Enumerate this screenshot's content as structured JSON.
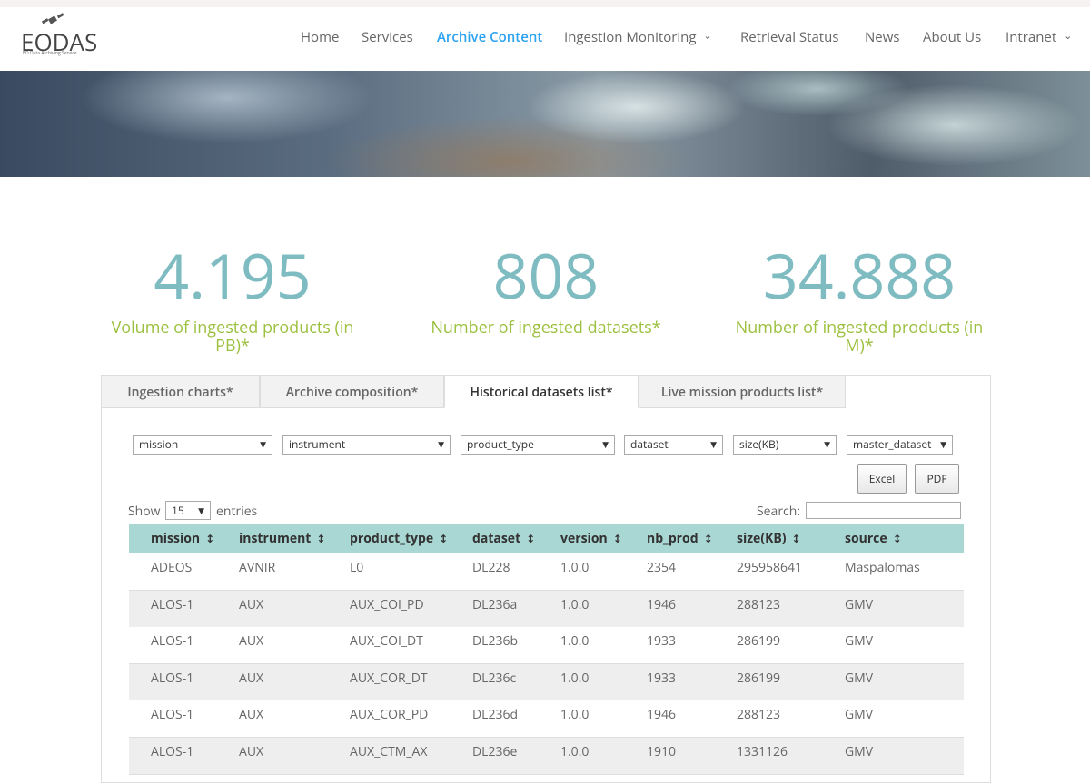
{
  "header": {
    "logo": "EODAS",
    "logo_sub": "EO Data Archiving Service",
    "nav": [
      "Home",
      "Services",
      "Archive Content",
      "Ingestion Monitoring",
      "Retrieval Status",
      "News",
      "About Us",
      "Intranet"
    ]
  },
  "stats": [
    {
      "value": "4.195",
      "label": "Volume of ingested products (in PB)*"
    },
    {
      "value": "808",
      "label": "Number of ingested datasets*"
    },
    {
      "value": "34.888",
      "label": "Number of ingested products (in M)*"
    }
  ],
  "tabs": [
    "Ingestion charts*",
    "Archive composition*",
    "Historical datasets list*",
    "Live mission products list*"
  ],
  "filters": [
    "mission",
    "instrument",
    "product_type",
    "dataset",
    "size(KB)",
    "master_dataset"
  ],
  "buttons": [
    "Excel",
    "PDF"
  ],
  "length": {
    "show": "Show",
    "value": "15",
    "entries": "entries"
  },
  "search": "Search:",
  "table": {
    "columns": [
      "mission",
      "instrument",
      "product_type",
      "dataset",
      "version",
      "nb_prod",
      "size(KB)",
      "source"
    ],
    "rows": [
      [
        "ADEOS",
        "AVNIR",
        "L0",
        "DL228",
        "1.0.0",
        "2354",
        "295958641",
        "Maspalomas"
      ],
      [
        "ALOS-1",
        "AUX",
        "AUX_COI_PD",
        "DL236a",
        "1.0.0",
        "1946",
        "288123",
        "GMV"
      ],
      [
        "ALOS-1",
        "AUX",
        "AUX_COI_DT",
        "DL236b",
        "1.0.0",
        "1933",
        "286199",
        "GMV"
      ],
      [
        "ALOS-1",
        "AUX",
        "AUX_COR_DT",
        "DL236c",
        "1.0.0",
        "1933",
        "286199",
        "GMV"
      ],
      [
        "ALOS-1",
        "AUX",
        "AUX_COR_PD",
        "DL236d",
        "1.0.0",
        "1946",
        "288123",
        "GMV"
      ],
      [
        "ALOS-1",
        "AUX",
        "AUX_CTM_AX",
        "DL236e",
        "1.0.0",
        "1910",
        "1331126",
        "GMV"
      ]
    ]
  }
}
